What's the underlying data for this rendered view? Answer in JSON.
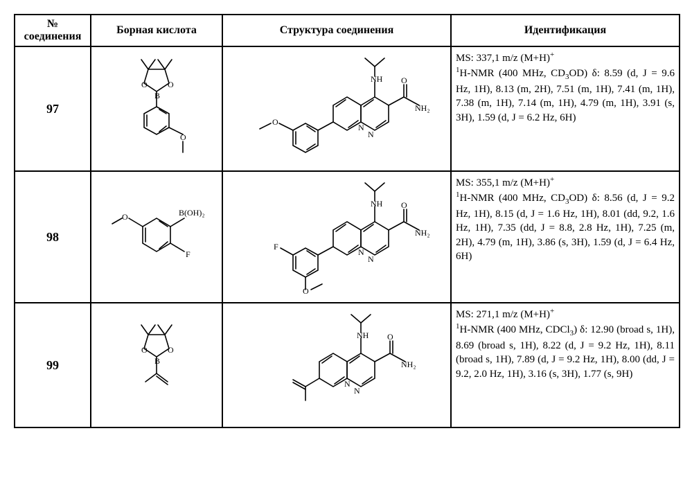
{
  "headers": {
    "num": "№ соединения",
    "boron": "Борная кислота",
    "struct": "Структура соединения",
    "ident": "Идентификация"
  },
  "rows": [
    {
      "num": "97",
      "ident_html": "MS: 337,1 m/z (M+H)<sup>+</sup><br><sup>1</sup>H-NMR (400 MHz, CD<sub>3</sub>OD) δ: 8.59 (d, J = 9.6 Hz, 1H), 8.13 (m, 2H), 7.51 (m, 1H), 7.41 (m, 1H), 7.38 (m, 1H), 7.14 (m, 1H), 4.79 (m, 1H), 3.91 (s, 3H), 1.59 (d, J = 6.2 Hz, 6H)"
    },
    {
      "num": "98",
      "ident_html": "MS: 355,1 m/z (M+H)<sup>+</sup><br><sup>1</sup>H-NMR (400 MHz, CD<sub>3</sub>OD) δ: 8.56 (d, J = 9.2 Hz, 1H), 8.15 (d, J = 1.6 Hz, 1H), 8.01 (dd, 9.2, 1.6 Hz, 1H), 7.35 (dd, J = 8.8, 2.8 Hz, 1H), 7.25 (m, 2H), 4.79 (m, 1H), 3.86 (s, 3H), 1.59 (d, J = 6.4 Hz, 6H)"
    },
    {
      "num": "99",
      "ident_html": "MS: 271,1 m/z (M+H)<sup>+</sup><br><sup>1</sup>H-NMR (400 MHz, CDCl<sub>3</sub>) δ: 12.90 (broad s, 1H), 8.69 (broad s, 1H), 8.22 (d, J = 9.2 Hz, 1H), 8.11 (broad s, 1H), 7.89 (d, J = 9.2 Hz, 1H), 8.00 (dd, J = 9.2, 2.0 Hz, 1H), 3.16 (s, 3H), 1.77 (s, 9H)"
    }
  ],
  "style": {
    "stroke": "#000000",
    "stroke_width": 1.6,
    "label_font_size": 12,
    "label_font_family": "Times New Roman, serif"
  }
}
